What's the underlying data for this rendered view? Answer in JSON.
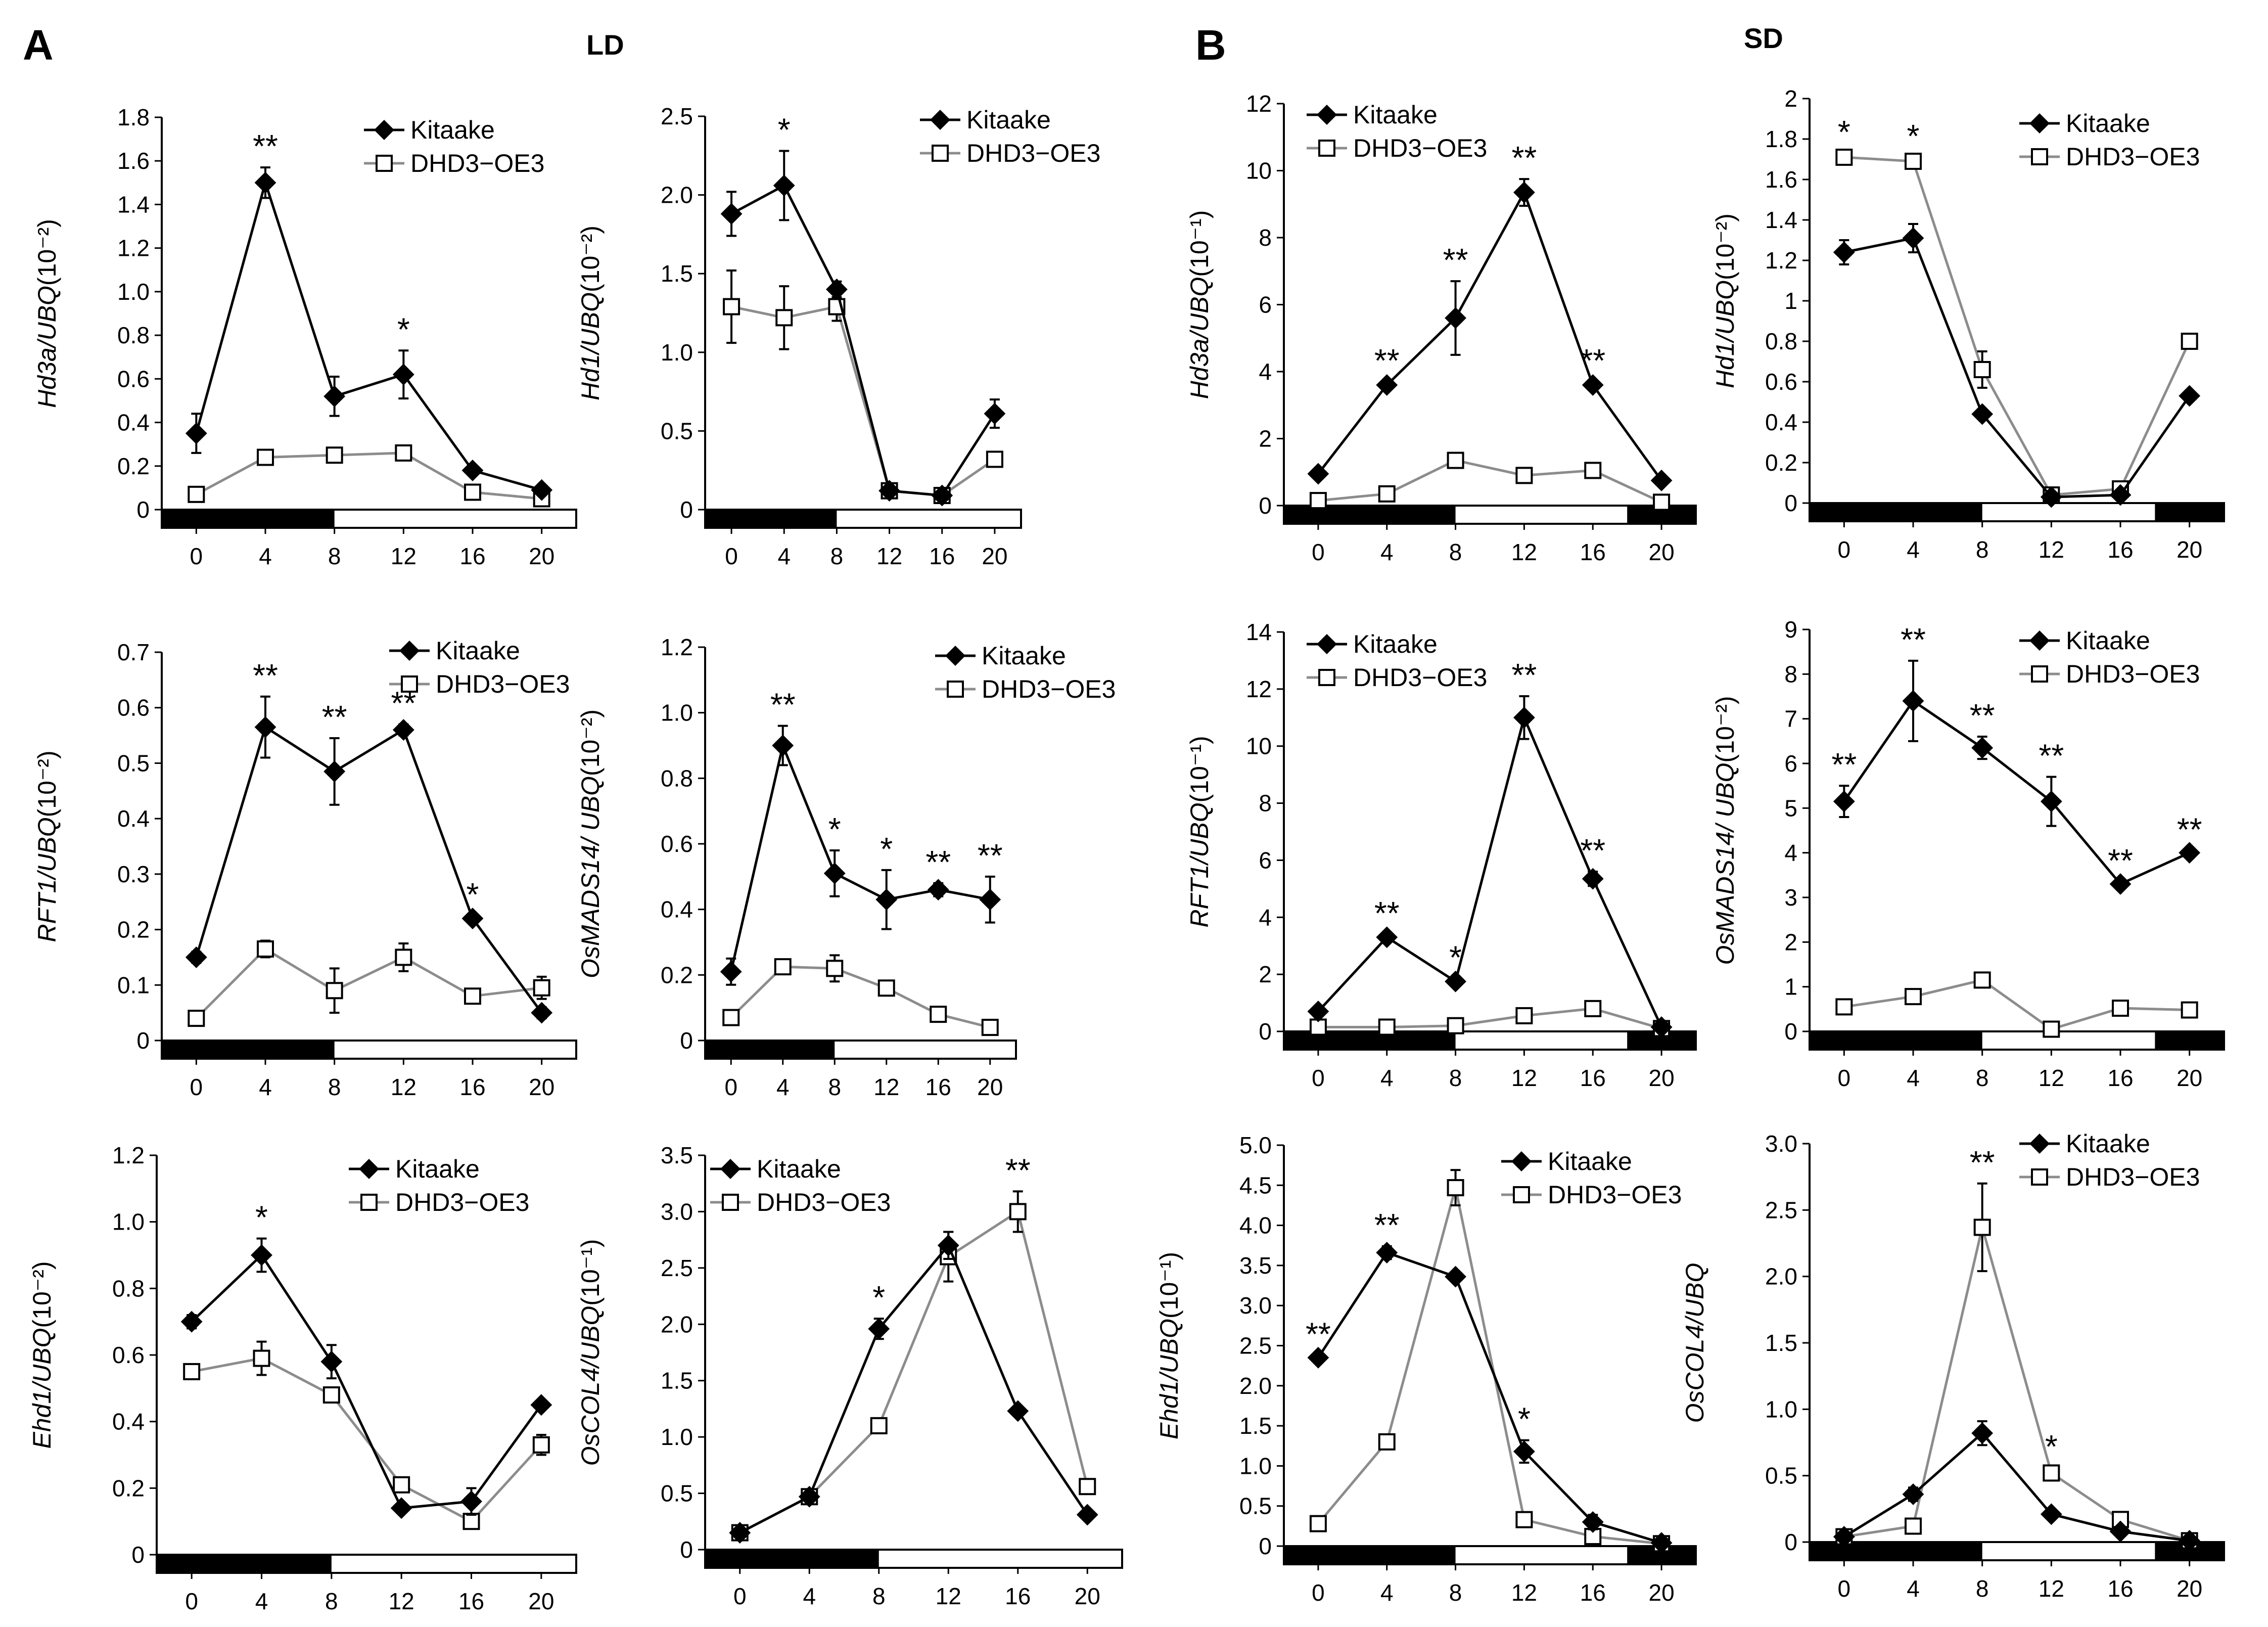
{
  "figure": {
    "panel_a_letter": "A",
    "panel_b_letter": "B",
    "panel_a_condition": "LD",
    "panel_b_condition": "SD"
  },
  "colors": {
    "kitaake": "#000000",
    "dhd3": "#8c8c8c",
    "day_bar_dark": "#000000",
    "day_bar_light": "#ffffff"
  },
  "legend": {
    "kitaake": "Kitaake",
    "dhd3": "DHD3−OE3"
  },
  "chart_data": [
    {
      "id": "A1",
      "type": "line",
      "panel": "A",
      "condition": "LD",
      "ylabel_gene": "Hd3a/",
      "ylabel_ref": "UBQ",
      "ylabel_scale": "(10⁻²)",
      "x": [
        0,
        4,
        8,
        12,
        16,
        20
      ],
      "xticks": [
        "0",
        "4",
        "8",
        "12",
        "16",
        "20"
      ],
      "ylim": [
        0,
        1.8
      ],
      "yticks": [
        "0",
        "0.2",
        "0.4",
        "0.6",
        "0.8",
        "1.0",
        "1.2",
        "1.4",
        "1.6",
        "1.8"
      ],
      "dark_intervals": [
        [
          -2,
          8
        ]
      ],
      "series": [
        {
          "name": "Kitaake",
          "values": [
            0.35,
            1.5,
            0.52,
            0.62,
            0.18,
            0.09
          ],
          "errors": [
            0.09,
            0.07,
            0.09,
            0.11,
            0.01,
            0.01
          ]
        },
        {
          "name": "DHD3−OE3",
          "values": [
            0.07,
            0.24,
            0.25,
            0.26,
            0.08,
            0.05
          ],
          "errors": [
            0.01,
            0.02,
            0.02,
            0.02,
            0.01,
            0.01
          ]
        }
      ],
      "significance": [
        "",
        "**",
        "",
        "*",
        "",
        ""
      ]
    },
    {
      "id": "A2",
      "type": "line",
      "panel": "A",
      "condition": "LD",
      "ylabel_gene": "Hd1/",
      "ylabel_ref": "UBQ",
      "ylabel_scale": "(10⁻²)",
      "x": [
        0,
        4,
        8,
        12,
        16,
        20
      ],
      "xticks": [
        "0",
        "4",
        "8",
        "12",
        "16",
        "20"
      ],
      "ylim": [
        0,
        2.5
      ],
      "yticks": [
        "0",
        "0.5",
        "1.0",
        "1.5",
        "2.0",
        "2.5"
      ],
      "dark_intervals": [
        [
          -2,
          8
        ]
      ],
      "series": [
        {
          "name": "Kitaake",
          "values": [
            1.88,
            2.06,
            1.4,
            0.12,
            0.09,
            0.61
          ],
          "errors": [
            0.14,
            0.22,
            0.05,
            0.02,
            0.02,
            0.09
          ]
        },
        {
          "name": "DHD3−OE3",
          "values": [
            1.29,
            1.22,
            1.29,
            0.12,
            0.09,
            0.32
          ],
          "errors": [
            0.23,
            0.2,
            0.09,
            0.02,
            0.02,
            0.03
          ]
        }
      ],
      "significance": [
        "",
        "*",
        "",
        "",
        "",
        ""
      ]
    },
    {
      "id": "B1",
      "type": "line",
      "panel": "B",
      "condition": "SD",
      "ylabel_gene": "Hd3a/",
      "ylabel_ref": "UBQ",
      "ylabel_scale": "(10⁻¹)",
      "x": [
        0,
        4,
        8,
        12,
        16,
        20
      ],
      "xticks": [
        "0",
        "4",
        "8",
        "12",
        "16",
        "20"
      ],
      "ylim": [
        0,
        12
      ],
      "yticks": [
        "0",
        "2",
        "4",
        "6",
        "8",
        "10",
        "12"
      ],
      "dark_intervals": [
        [
          -2,
          8
        ],
        [
          18,
          22
        ]
      ],
      "series": [
        {
          "name": "Kitaake",
          "values": [
            0.95,
            3.6,
            5.6,
            9.35,
            3.6,
            0.75
          ],
          "errors": [
            0.05,
            0.1,
            1.1,
            0.4,
            0.1,
            0.05
          ]
        },
        {
          "name": "DHD3−OE3",
          "values": [
            0.15,
            0.35,
            1.35,
            0.9,
            1.05,
            0.1
          ],
          "errors": [
            0.02,
            0.05,
            0.1,
            0.05,
            0.1,
            0.02
          ]
        }
      ],
      "significance": [
        "",
        "**",
        "**",
        "**",
        "**",
        ""
      ]
    },
    {
      "id": "B2",
      "type": "line",
      "panel": "B",
      "condition": "SD",
      "ylabel_gene": "Hd1/",
      "ylabel_ref": "UBQ",
      "ylabel_scale": "(10⁻²)",
      "x": [
        0,
        4,
        8,
        12,
        16,
        20
      ],
      "xticks": [
        "0",
        "4",
        "8",
        "12",
        "16",
        "20"
      ],
      "ylim": [
        0,
        2
      ],
      "yticks": [
        "0",
        "0.2",
        "0.4",
        "0.6",
        "0.8",
        "1",
        "1.2",
        "1.4",
        "1.6",
        "1.8",
        "2"
      ],
      "dark_intervals": [
        [
          -2,
          8
        ],
        [
          18,
          22
        ]
      ],
      "series": [
        {
          "name": "Kitaake",
          "values": [
            1.24,
            1.31,
            0.44,
            0.03,
            0.04,
            0.53
          ],
          "errors": [
            0.06,
            0.07,
            0.02,
            0.01,
            0.01,
            0.02
          ]
        },
        {
          "name": "DHD3−OE3",
          "values": [
            1.71,
            1.69,
            0.66,
            0.04,
            0.07,
            0.8
          ],
          "errors": [
            0.02,
            0.02,
            0.09,
            0.01,
            0.01,
            0.02
          ]
        }
      ],
      "significance": [
        "*",
        "*",
        "",
        "",
        "",
        ""
      ]
    },
    {
      "id": "A3",
      "type": "line",
      "panel": "A",
      "condition": "LD",
      "ylabel_gene": "RFT1/",
      "ylabel_ref": "UBQ",
      "ylabel_scale": "(10⁻²)",
      "x": [
        0,
        4,
        8,
        12,
        16,
        20
      ],
      "xticks": [
        "0",
        "4",
        "8",
        "12",
        "16",
        "20"
      ],
      "ylim": [
        0,
        0.7
      ],
      "yticks": [
        "0",
        "0.1",
        "0.2",
        "0.3",
        "0.4",
        "0.5",
        "0.6",
        "0.7"
      ],
      "dark_intervals": [
        [
          -2,
          8
        ]
      ],
      "series": [
        {
          "name": "Kitaake",
          "values": [
            0.15,
            0.565,
            0.485,
            0.56,
            0.22,
            0.05
          ],
          "errors": [
            0.01,
            0.055,
            0.06,
            0.01,
            0.005,
            0.01
          ]
        },
        {
          "name": "DHD3−OE3",
          "values": [
            0.04,
            0.165,
            0.09,
            0.15,
            0.08,
            0.095
          ],
          "errors": [
            0.005,
            0.015,
            0.04,
            0.025,
            0.01,
            0.02
          ]
        }
      ],
      "significance": [
        "",
        "**",
        "**",
        "**",
        "*",
        ""
      ]
    },
    {
      "id": "A4",
      "type": "line",
      "panel": "A",
      "condition": "LD",
      "ylabel_gene": "OsMADS14/ ",
      "ylabel_ref": "UBQ",
      "ylabel_scale": "(10⁻²)",
      "x": [
        0,
        4,
        8,
        12,
        16,
        20
      ],
      "xticks": [
        "0",
        "4",
        "8",
        "12",
        "16",
        "20"
      ],
      "ylim": [
        0,
        1.2
      ],
      "yticks": [
        "0",
        "0.2",
        "0.4",
        "0.6",
        "0.8",
        "1.0",
        "1.2"
      ],
      "dark_intervals": [
        [
          -2,
          8
        ]
      ],
      "series": [
        {
          "name": "Kitaake",
          "values": [
            0.21,
            0.9,
            0.51,
            0.43,
            0.46,
            0.43
          ],
          "errors": [
            0.04,
            0.06,
            0.07,
            0.09,
            0.02,
            0.07
          ]
        },
        {
          "name": "DHD3−OE3",
          "values": [
            0.07,
            0.225,
            0.22,
            0.16,
            0.08,
            0.04
          ],
          "errors": [
            0.01,
            0.01,
            0.04,
            0.02,
            0.01,
            0.01
          ]
        }
      ],
      "significance": [
        "",
        "**",
        "*",
        "*",
        "**",
        "**"
      ]
    },
    {
      "id": "B3",
      "type": "line",
      "panel": "B",
      "condition": "SD",
      "ylabel_gene": "RFT1/",
      "ylabel_ref": "UBQ",
      "ylabel_scale": "(10⁻¹)",
      "x": [
        0,
        4,
        8,
        12,
        16,
        20
      ],
      "xticks": [
        "0",
        "4",
        "8",
        "12",
        "16",
        "20"
      ],
      "ylim": [
        0,
        14
      ],
      "yticks": [
        "0",
        "2",
        "4",
        "6",
        "8",
        "10",
        "12",
        "14"
      ],
      "dark_intervals": [
        [
          -2,
          8
        ],
        [
          18,
          22
        ]
      ],
      "series": [
        {
          "name": "Kitaake",
          "values": [
            0.7,
            3.3,
            1.75,
            11.0,
            5.35,
            0.15
          ],
          "errors": [
            0.05,
            0.1,
            0.1,
            0.75,
            0.25,
            0.02
          ]
        },
        {
          "name": "DHD3−OE3",
          "values": [
            0.15,
            0.15,
            0.2,
            0.55,
            0.8,
            0.1
          ],
          "errors": [
            0.02,
            0.02,
            0.03,
            0.05,
            0.05,
            0.02
          ]
        }
      ],
      "significance": [
        "",
        "**",
        "*",
        "**",
        "**",
        ""
      ]
    },
    {
      "id": "B4",
      "type": "line",
      "panel": "B",
      "condition": "SD",
      "ylabel_gene": "OsMADS14/ ",
      "ylabel_ref": "UBQ",
      "ylabel_scale": "(10⁻²)",
      "x": [
        0,
        4,
        8,
        12,
        16,
        20
      ],
      "xticks": [
        "0",
        "4",
        "8",
        "12",
        "16",
        "20"
      ],
      "ylim": [
        0,
        9
      ],
      "yticks": [
        "0",
        "1",
        "2",
        "3",
        "4",
        "5",
        "6",
        "7",
        "8",
        "9"
      ],
      "dark_intervals": [
        [
          -2,
          8
        ],
        [
          18,
          22
        ]
      ],
      "series": [
        {
          "name": "Kitaake",
          "values": [
            5.15,
            7.4,
            6.35,
            5.15,
            3.3,
            4.0
          ],
          "errors": [
            0.35,
            0.9,
            0.25,
            0.55,
            0.05,
            0.05
          ]
        },
        {
          "name": "DHD3−OE3",
          "values": [
            0.55,
            0.78,
            1.15,
            0.05,
            0.52,
            0.48
          ],
          "errors": [
            0.02,
            0.03,
            0.03,
            0.02,
            0.03,
            0.03
          ]
        }
      ],
      "significance": [
        "**",
        "**",
        "**",
        "**",
        "**",
        "**"
      ]
    },
    {
      "id": "A5",
      "type": "line",
      "panel": "A",
      "condition": "LD",
      "ylabel_gene": "Ehd1/",
      "ylabel_ref": "UBQ",
      "ylabel_scale": "(10⁻²)",
      "x": [
        0,
        4,
        8,
        12,
        16,
        20
      ],
      "xticks": [
        "0",
        "4",
        "8",
        "12",
        "16",
        "20"
      ],
      "ylim": [
        0,
        1.2
      ],
      "yticks": [
        "0",
        "0.2",
        "0.4",
        "0.6",
        "0.8",
        "1.0",
        "1.2"
      ],
      "dark_intervals": [
        [
          -2,
          8
        ]
      ],
      "series": [
        {
          "name": "Kitaake",
          "values": [
            0.7,
            0.9,
            0.58,
            0.14,
            0.16,
            0.45
          ],
          "errors": [
            0.02,
            0.05,
            0.05,
            0.01,
            0.04,
            0.01
          ]
        },
        {
          "name": "DHD3−OE3",
          "values": [
            0.55,
            0.59,
            0.48,
            0.21,
            0.1,
            0.33
          ],
          "errors": [
            0.02,
            0.05,
            0.02,
            0.02,
            0.02,
            0.03
          ]
        }
      ],
      "significance": [
        "",
        "*",
        "",
        "",
        "",
        ""
      ]
    },
    {
      "id": "A6",
      "type": "line",
      "panel": "A",
      "condition": "LD",
      "ylabel_gene": "OsCOL4/",
      "ylabel_ref": "UBQ",
      "ylabel_scale": "(10⁻¹)",
      "x": [
        0,
        4,
        8,
        12,
        16,
        20
      ],
      "xticks": [
        "0",
        "4",
        "8",
        "12",
        "16",
        "20"
      ],
      "ylim": [
        0,
        3.5
      ],
      "yticks": [
        "0",
        "0.5",
        "1.0",
        "1.5",
        "2.0",
        "2.5",
        "3.0",
        "3.5"
      ],
      "dark_intervals": [
        [
          -2,
          8
        ]
      ],
      "series": [
        {
          "name": "Kitaake",
          "values": [
            0.15,
            0.47,
            1.96,
            2.7,
            1.23,
            0.31
          ],
          "errors": [
            0.02,
            0.03,
            0.09,
            0.12,
            0.03,
            0.02
          ]
        },
        {
          "name": "DHD3−OE3",
          "values": [
            0.15,
            0.47,
            1.1,
            2.6,
            3.0,
            0.56
          ],
          "errors": [
            0.02,
            0.03,
            0.05,
            0.22,
            0.18,
            0.06
          ]
        }
      ],
      "significance": [
        "",
        "",
        "*",
        "",
        "**",
        ""
      ]
    },
    {
      "id": "B5",
      "type": "line",
      "panel": "B",
      "condition": "SD",
      "ylabel_gene": "Ehd1/",
      "ylabel_ref": "UBQ",
      "ylabel_scale": "(10⁻¹)",
      "x": [
        0,
        4,
        8,
        12,
        16,
        20
      ],
      "xticks": [
        "0",
        "4",
        "8",
        "12",
        "16",
        "20"
      ],
      "ylim": [
        0,
        5
      ],
      "yticks": [
        "0",
        "0.5",
        "1.0",
        "1.5",
        "2.0",
        "2.5",
        "3.0",
        "3.5",
        "4.0",
        "4.5",
        "5.0"
      ],
      "dark_intervals": [
        [
          -2,
          8
        ],
        [
          18,
          22
        ]
      ],
      "series": [
        {
          "name": "Kitaake",
          "values": [
            2.35,
            3.66,
            3.36,
            1.18,
            0.3,
            0.04
          ],
          "errors": [
            0.03,
            0.08,
            0.03,
            0.14,
            0.09,
            0.02
          ]
        },
        {
          "name": "DHD3−OE3",
          "values": [
            0.28,
            1.3,
            4.47,
            0.33,
            0.12,
            0.03
          ],
          "errors": [
            0.03,
            0.04,
            0.22,
            0.04,
            0.03,
            0.01
          ]
        }
      ],
      "significance": [
        "**",
        "**",
        "",
        "*",
        "",
        ""
      ]
    },
    {
      "id": "B6",
      "type": "line",
      "panel": "B",
      "condition": "SD",
      "ylabel_gene": "OsCOL4/",
      "ylabel_ref": "UBQ",
      "ylabel_scale": "",
      "x": [
        0,
        4,
        8,
        12,
        16,
        20
      ],
      "xticks": [
        "0",
        "4",
        "8",
        "12",
        "16",
        "20"
      ],
      "ylim": [
        0,
        3
      ],
      "yticks": [
        "0",
        "0.5",
        "1.0",
        "1.5",
        "2.0",
        "2.5",
        "3.0"
      ],
      "dark_intervals": [
        [
          -2,
          8
        ],
        [
          18,
          22
        ]
      ],
      "series": [
        {
          "name": "Kitaake",
          "values": [
            0.04,
            0.36,
            0.82,
            0.21,
            0.08,
            0.01
          ],
          "errors": [
            0.01,
            0.05,
            0.09,
            0.02,
            0.02,
            0.01
          ]
        },
        {
          "name": "DHD3−OE3",
          "values": [
            0.04,
            0.12,
            2.37,
            0.52,
            0.17,
            0.01
          ],
          "errors": [
            0.01,
            0.03,
            0.33,
            0.04,
            0.02,
            0.01
          ]
        }
      ],
      "significance": [
        "",
        "",
        "**",
        "*",
        "",
        ""
      ]
    }
  ]
}
